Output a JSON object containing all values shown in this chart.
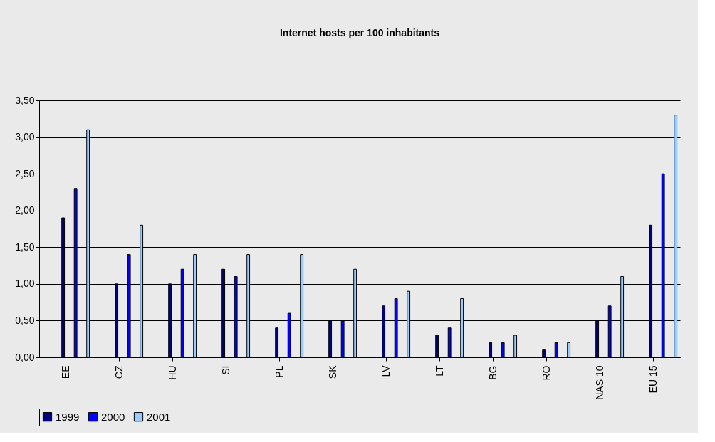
{
  "chart_data": {
    "type": "bar",
    "title": "Internet hosts per 100 inhabitants",
    "categories": [
      "EE",
      "CZ",
      "HU",
      "SI",
      "PL",
      "SK",
      "LV",
      "LT",
      "BG",
      "RO",
      "NAS 10",
      "EU 15"
    ],
    "series": [
      {
        "name": "1999",
        "color": "#000080",
        "values": [
          1.9,
          1.0,
          1.0,
          1.2,
          0.4,
          0.5,
          0.7,
          0.3,
          0.2,
          0.1,
          0.5,
          1.8
        ]
      },
      {
        "name": "2000",
        "color": "#0000ff",
        "values": [
          2.3,
          1.4,
          1.2,
          1.1,
          0.6,
          0.5,
          0.8,
          0.4,
          0.2,
          0.2,
          0.7,
          2.5
        ]
      },
      {
        "name": "2001",
        "color": "#99ccff",
        "values": [
          3.1,
          1.8,
          1.4,
          1.4,
          1.4,
          1.2,
          0.9,
          0.8,
          0.3,
          0.2,
          1.1,
          3.3
        ]
      }
    ],
    "ylim": [
      0,
      3.5
    ],
    "yticks": [
      {
        "value": 0,
        "label": "0,00"
      },
      {
        "value": 0.5,
        "label": "0,50"
      },
      {
        "value": 1,
        "label": "1,00"
      },
      {
        "value": 1.5,
        "label": "1,50"
      },
      {
        "value": 2,
        "label": "2,00"
      },
      {
        "value": 2.5,
        "label": "2,50"
      },
      {
        "value": 3,
        "label": "3,00"
      },
      {
        "value": 3.5,
        "label": "3,50"
      }
    ],
    "grid": "y",
    "legend": "bottom"
  }
}
